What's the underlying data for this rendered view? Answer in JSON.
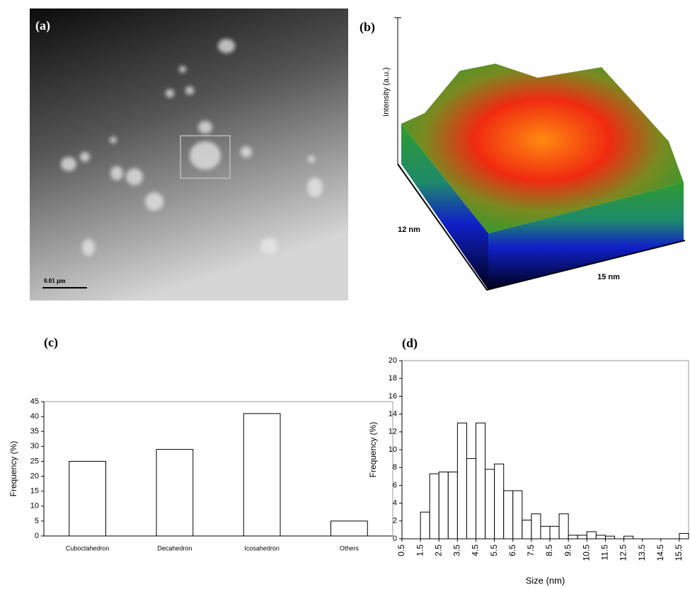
{
  "panels": {
    "a": {
      "label": "(a)",
      "scale_bar": "0.01 µm"
    },
    "b": {
      "label": "(b)",
      "z_axis": "Intensity (a.u.)",
      "y_axis": "12 nm",
      "x_axis": "15 nm"
    }
  },
  "chart_data": [
    {
      "type": "bar",
      "title": "(c)",
      "y_label": "Frequency (%)",
      "categories": [
        "Cuboctahedron",
        "Decahedron",
        "Icosahedron",
        "Others"
      ],
      "values": [
        25,
        29,
        41,
        5
      ],
      "color": "#ffffff",
      "ylim": [
        0,
        45
      ],
      "yticks": [
        0,
        5,
        10,
        15,
        20,
        25,
        30,
        35,
        40,
        45
      ]
    },
    {
      "type": "histogram",
      "title": "(d)",
      "y_label": "Frequency (%)",
      "x_label": "Size (nm)",
      "bins": [
        0.5,
        1,
        1.5,
        2,
        2.5,
        3,
        3.5,
        4,
        4.5,
        5,
        5.5,
        6,
        6.5,
        7,
        7.5,
        8,
        8.5,
        9,
        9.5,
        10,
        10.5,
        11,
        11.5,
        12,
        12.5,
        13,
        13.5,
        14,
        14.5,
        15,
        15.5,
        16
      ],
      "values": [
        0,
        0,
        3,
        7.3,
        7.5,
        7.5,
        13,
        9,
        13,
        7.8,
        8.4,
        5.4,
        5.4,
        2.1,
        2.8,
        1.4,
        1.4,
        2.8,
        0.4,
        0.4,
        0.8,
        0.4,
        0.3,
        0,
        0.3,
        0,
        0,
        0,
        0,
        0,
        0.6
      ],
      "color": "#ffffff",
      "xlim": [
        0.5,
        16
      ],
      "xticks": [
        0.5,
        1.5,
        2.5,
        3.5,
        4.5,
        5.5,
        6.5,
        7.5,
        8.5,
        9.5,
        10.5,
        11.5,
        12.5,
        13.5,
        14.5,
        15.5
      ],
      "ylim": [
        0,
        20
      ],
      "yticks": [
        0,
        2,
        4,
        6,
        8,
        10,
        12,
        14,
        16,
        18,
        20
      ]
    }
  ]
}
